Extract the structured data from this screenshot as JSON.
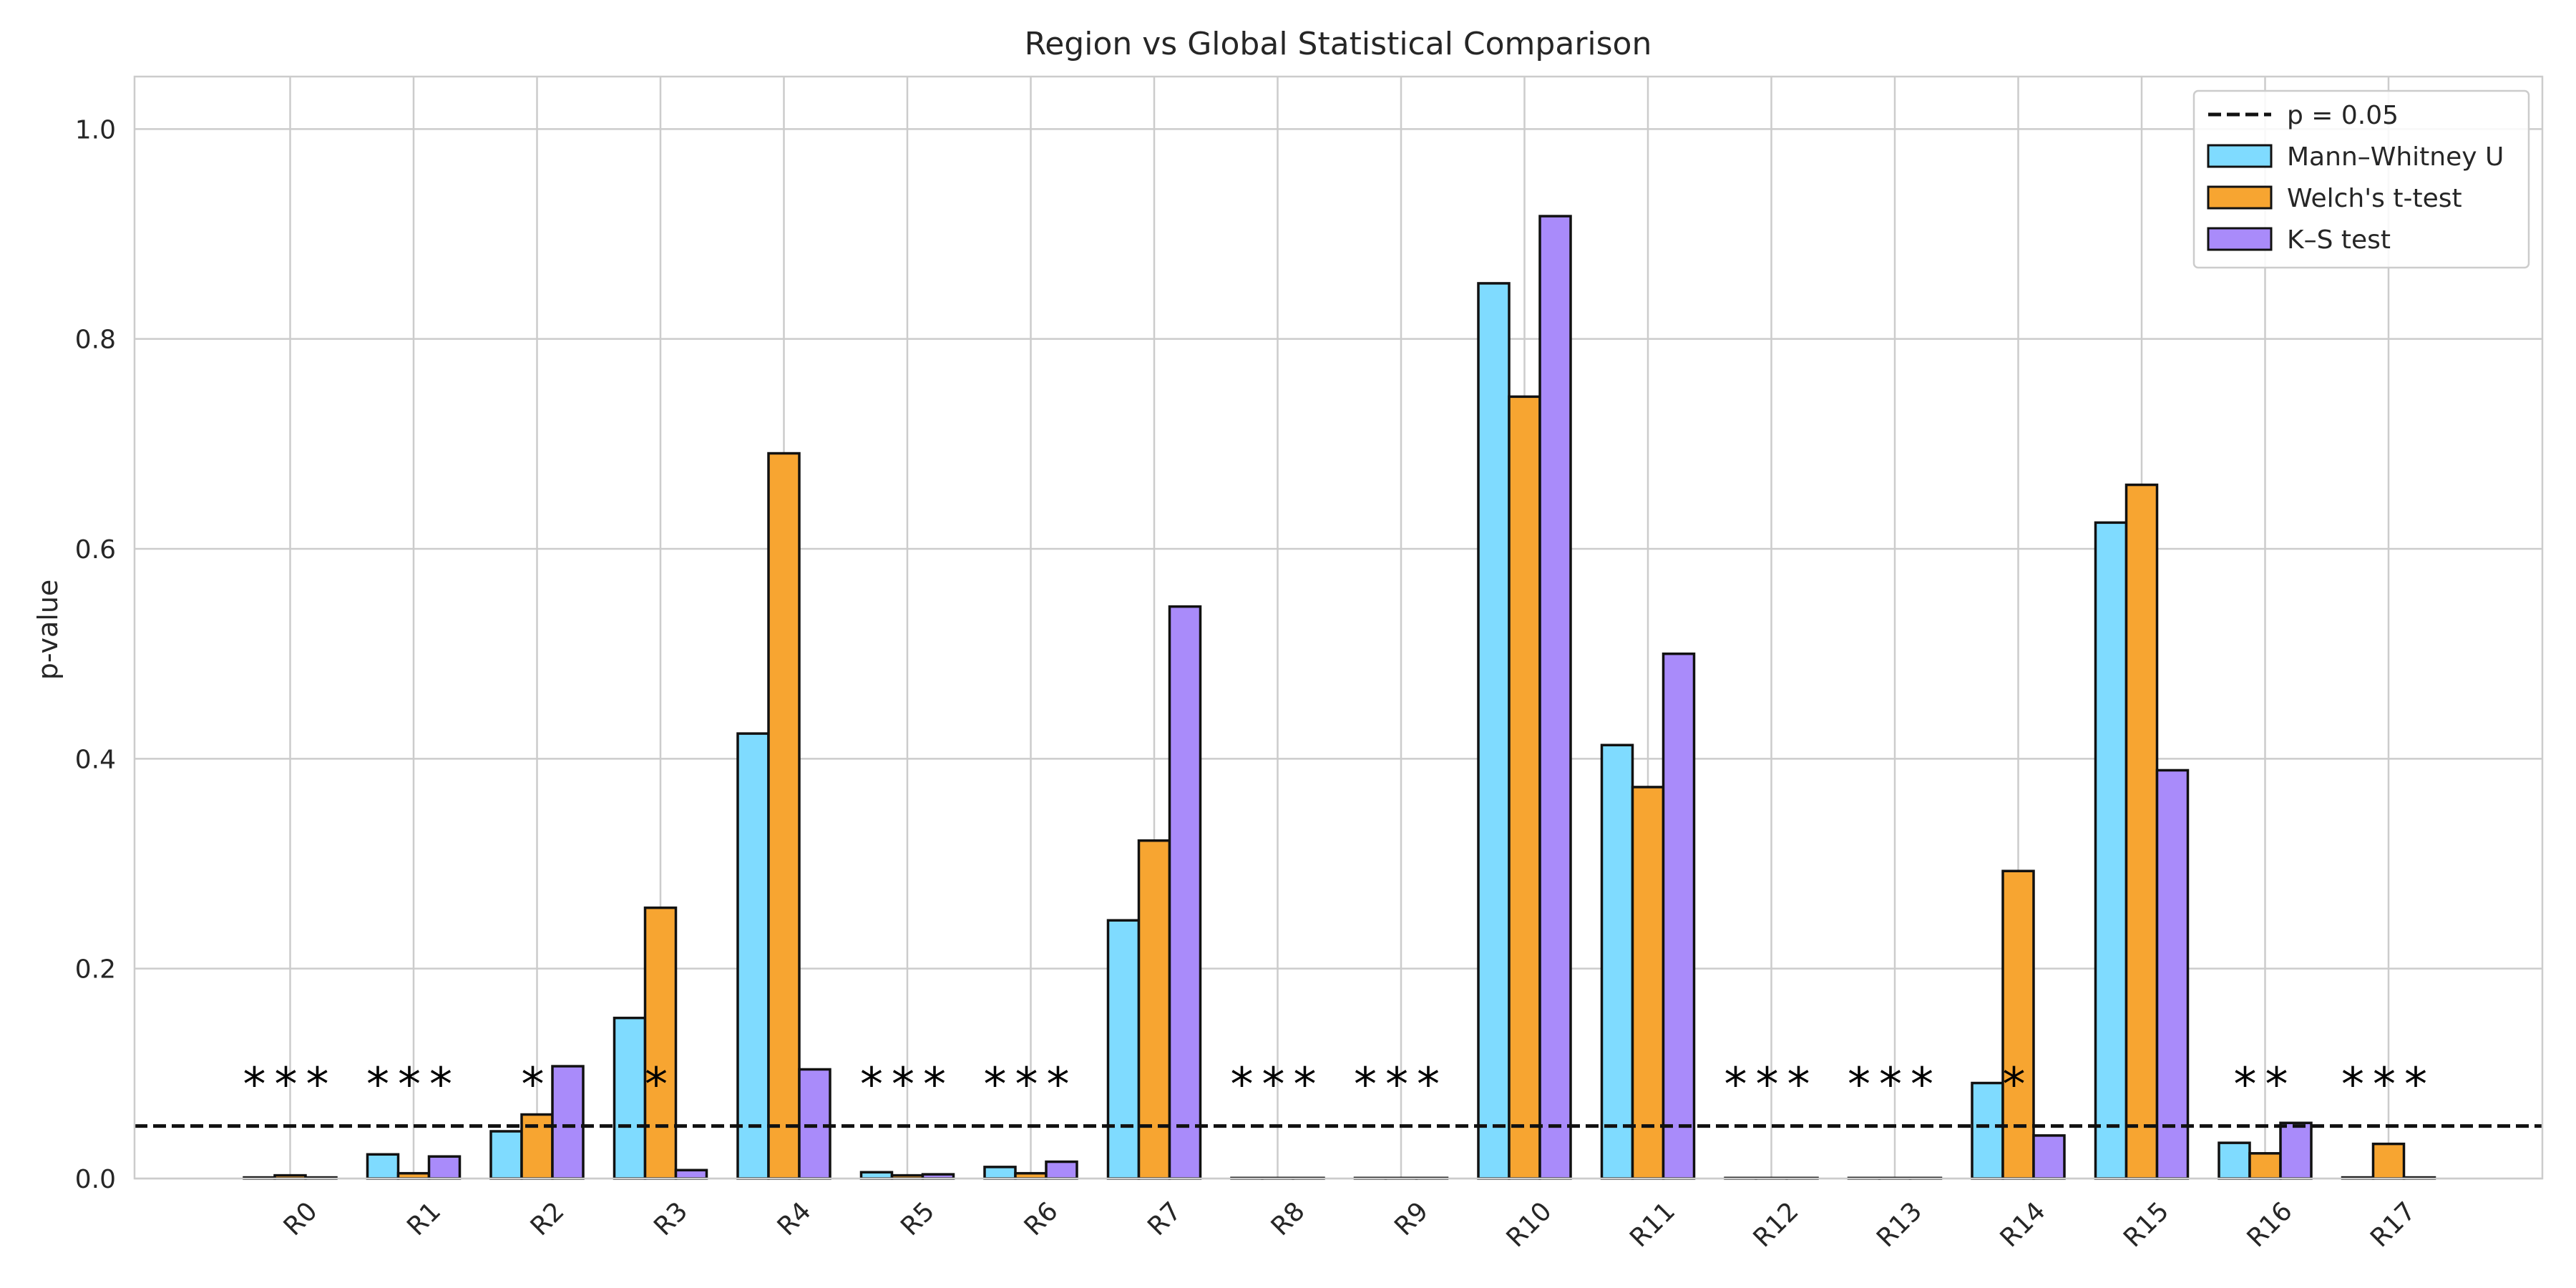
{
  "chart_data": {
    "type": "bar",
    "title": "Region vs Global Statistical Comparison",
    "xlabel": "",
    "ylabel": "p-value",
    "ylim": [
      0,
      1.05
    ],
    "yticks": [
      0.0,
      0.2,
      0.4,
      0.6,
      0.8,
      1.0
    ],
    "ytick_labels": [
      "0.0",
      "0.2",
      "0.4",
      "0.6",
      "0.8",
      "1.0"
    ],
    "grid": true,
    "legend_position": "top-right",
    "categories": [
      "R0",
      "R1",
      "R2",
      "R3",
      "R4",
      "R5",
      "R6",
      "R7",
      "R8",
      "R9",
      "R10",
      "R11",
      "R12",
      "R13",
      "R14",
      "R15",
      "R16",
      "R17"
    ],
    "series": [
      {
        "name": "Mann–Whitney U",
        "color": "#7fdbff",
        "values": [
          0.001,
          0.023,
          0.045,
          0.153,
          0.424,
          0.006,
          0.011,
          0.246,
          0.0005,
          0.0005,
          0.853,
          0.413,
          0.0005,
          0.0005,
          0.091,
          0.625,
          0.034,
          0.001
        ]
      },
      {
        "name": "Welch's t-test",
        "color": "#f7a531",
        "values": [
          0.003,
          0.005,
          0.061,
          0.258,
          0.691,
          0.003,
          0.005,
          0.322,
          0.0005,
          0.0005,
          0.745,
          0.373,
          0.0005,
          0.0005,
          0.293,
          0.661,
          0.024,
          0.033
        ]
      },
      {
        "name": "K–S test",
        "color": "#a98bfa",
        "values": [
          0.001,
          0.021,
          0.107,
          0.008,
          0.104,
          0.004,
          0.016,
          0.545,
          0.0005,
          0.0005,
          0.917,
          0.5,
          0.0005,
          0.0005,
          0.041,
          0.389,
          0.053,
          0.001
        ]
      }
    ],
    "threshold": {
      "label": "p = 0.05",
      "value": 0.05
    },
    "annotations": [
      {
        "category": "R0",
        "text": "***"
      },
      {
        "category": "R1",
        "text": "***"
      },
      {
        "category": "R2",
        "text": "*"
      },
      {
        "category": "R3",
        "text": "*"
      },
      {
        "category": "R5",
        "text": "***"
      },
      {
        "category": "R6",
        "text": "***"
      },
      {
        "category": "R8",
        "text": "***"
      },
      {
        "category": "R9",
        "text": "***"
      },
      {
        "category": "R12",
        "text": "***"
      },
      {
        "category": "R13",
        "text": "***"
      },
      {
        "category": "R14",
        "text": "*"
      },
      {
        "category": "R16",
        "text": "**"
      },
      {
        "category": "R17",
        "text": "***"
      }
    ],
    "annotation_y": 0.095
  }
}
